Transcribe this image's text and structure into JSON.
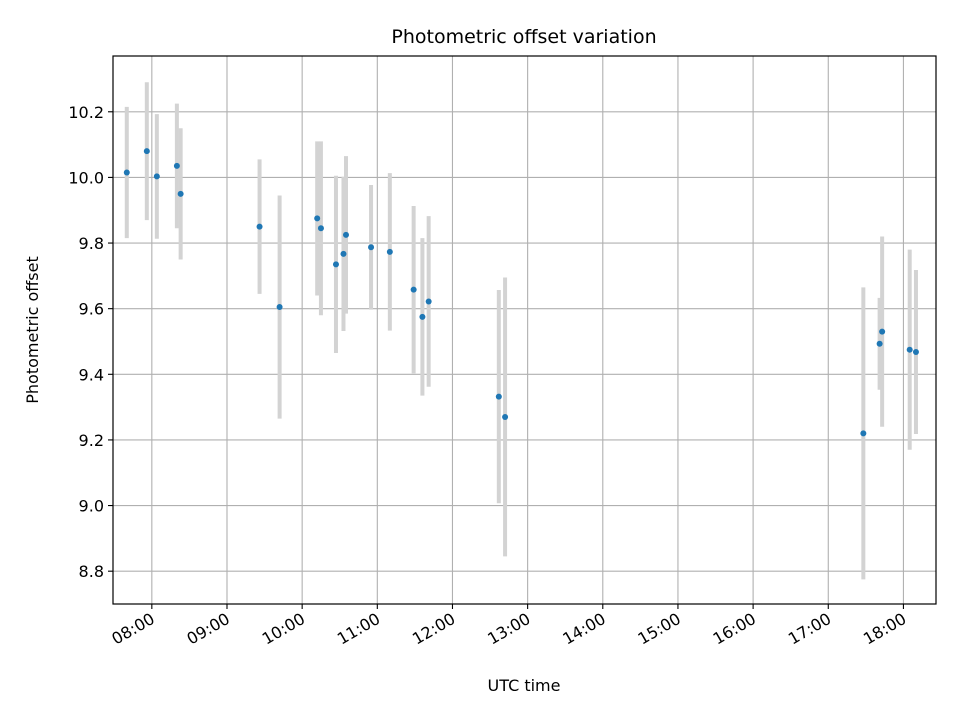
{
  "chart_data": {
    "type": "scatter",
    "title": "Photometric offset variation",
    "xlabel": "UTC time",
    "ylabel": "Photometric offset",
    "xlim": [
      "07:29",
      "18:26"
    ],
    "ylim": [
      8.7,
      10.37
    ],
    "grid": true,
    "x_ticks": [
      "08:00",
      "09:00",
      "10:00",
      "11:00",
      "12:00",
      "13:00",
      "14:00",
      "15:00",
      "16:00",
      "17:00",
      "18:00"
    ],
    "y_ticks": [
      8.8,
      9.0,
      9.2,
      9.4,
      9.6,
      9.8,
      10.0,
      10.2
    ],
    "x_tick_rotation_deg": 30,
    "colors": {
      "points": "#1f77b4",
      "errorbars": "#d3d3d3",
      "grid": "#b0b0b0"
    },
    "series": [
      {
        "points": [
          {
            "x": "07:40",
            "y": 10.015,
            "err": 0.2
          },
          {
            "x": "07:56",
            "y": 10.08,
            "err": 0.21
          },
          {
            "x": "08:04",
            "y": 10.003,
            "err": 0.19
          },
          {
            "x": "08:20",
            "y": 10.035,
            "err": 0.19
          },
          {
            "x": "08:23",
            "y": 9.95,
            "err": 0.2
          },
          {
            "x": "09:26",
            "y": 9.85,
            "err": 0.205
          },
          {
            "x": "09:42",
            "y": 9.605,
            "err": 0.34
          },
          {
            "x": "10:12",
            "y": 9.875,
            "err": 0.235
          },
          {
            "x": "10:15",
            "y": 9.845,
            "err": 0.265
          },
          {
            "x": "10:27",
            "y": 9.735,
            "err": 0.27
          },
          {
            "x": "10:33",
            "y": 9.767,
            "err": 0.235
          },
          {
            "x": "10:35",
            "y": 9.825,
            "err": 0.24
          },
          {
            "x": "10:55",
            "y": 9.787,
            "err": 0.19
          },
          {
            "x": "11:10",
            "y": 9.773,
            "err": 0.24
          },
          {
            "x": "11:29",
            "y": 9.658,
            "err": 0.255
          },
          {
            "x": "11:36",
            "y": 9.575,
            "err": 0.24
          },
          {
            "x": "11:41",
            "y": 9.622,
            "err": 0.26
          },
          {
            "x": "12:37",
            "y": 9.332,
            "err": 0.325
          },
          {
            "x": "12:42",
            "y": 9.27,
            "err": 0.425
          },
          {
            "x": "17:28",
            "y": 9.22,
            "err": 0.445
          },
          {
            "x": "17:41",
            "y": 9.493,
            "err": 0.14
          },
          {
            "x": "17:43",
            "y": 9.53,
            "err": 0.29
          },
          {
            "x": "18:05",
            "y": 9.475,
            "err": 0.305
          },
          {
            "x": "18:10",
            "y": 9.468,
            "err": 0.25
          }
        ]
      }
    ]
  }
}
